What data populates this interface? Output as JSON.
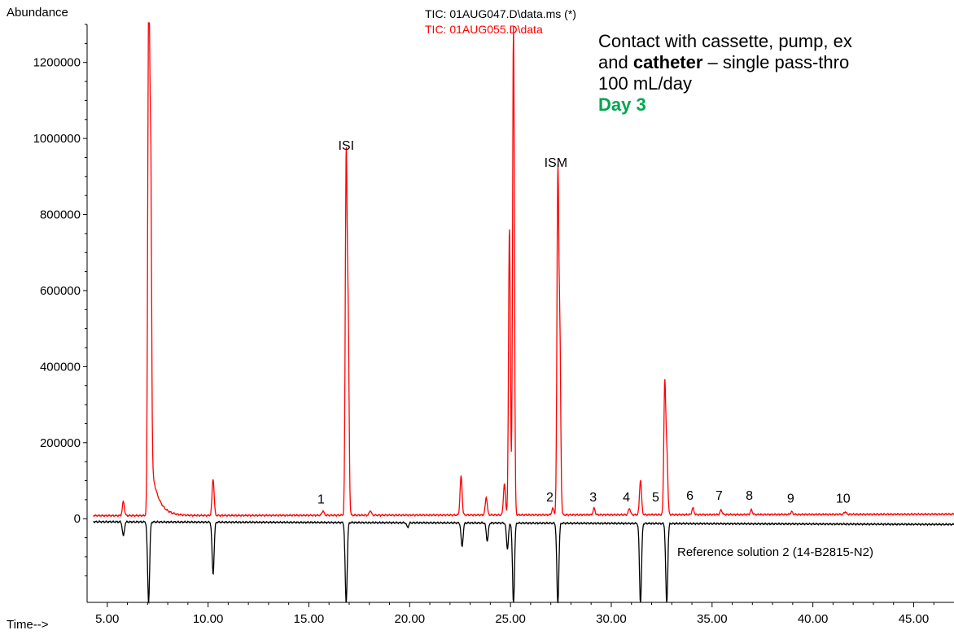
{
  "chart_data": {
    "type": "line",
    "ylabel": "Abundance",
    "xlabel": "Time-->",
    "xlim": [
      4.0,
      47.0
    ],
    "ylim": [
      -220000,
      1300000
    ],
    "x_ticks": [
      "5.00",
      "10.00",
      "15.00",
      "20.00",
      "25.00",
      "30.00",
      "35.00",
      "40.00",
      "45.00"
    ],
    "y_ticks": [
      "0",
      "200000",
      "400000",
      "600000",
      "800000",
      "1000000",
      "1200000"
    ],
    "series": [
      {
        "name": "TIC: 01AUG047.D\\data.ms (*)",
        "color": "#000000",
        "baseline": -8000,
        "drift_end": -15000,
        "peaks": [
          {
            "x": 5.8,
            "y": -45000
          },
          {
            "x": 7.05,
            "y": -220000
          },
          {
            "x": 10.25,
            "y": -145000
          },
          {
            "x": 16.85,
            "y": -220000
          },
          {
            "x": 19.9,
            "y": -20000
          },
          {
            "x": 22.6,
            "y": -70000
          },
          {
            "x": 23.85,
            "y": -55000
          },
          {
            "x": 24.85,
            "y": -75000
          },
          {
            "x": 25.15,
            "y": -220000
          },
          {
            "x": 27.35,
            "y": -220000
          },
          {
            "x": 31.45,
            "y": -220000
          },
          {
            "x": 32.75,
            "y": -220000
          }
        ]
      },
      {
        "name": "TIC: 01AUG055.D\\data.ms",
        "color": "#ff0000",
        "baseline": 8000,
        "drift_end": 12000,
        "peaks": [
          {
            "x": 5.8,
            "y": 45000
          },
          {
            "x": 7.05,
            "y": 1320000
          },
          {
            "x": 7.15,
            "y": 840000
          },
          {
            "x": 10.25,
            "y": 105000
          },
          {
            "x": 15.7,
            "y": 20000
          },
          {
            "x": 16.85,
            "y": 935000
          },
          {
            "x": 16.95,
            "y": 500000
          },
          {
            "x": 18.05,
            "y": 20000
          },
          {
            "x": 22.55,
            "y": 110000
          },
          {
            "x": 23.8,
            "y": 55000
          },
          {
            "x": 24.7,
            "y": 90000
          },
          {
            "x": 24.95,
            "y": 765000
          },
          {
            "x": 25.15,
            "y": 1295000
          },
          {
            "x": 27.1,
            "y": 25000
          },
          {
            "x": 27.35,
            "y": 890000
          },
          {
            "x": 27.45,
            "y": 455000
          },
          {
            "x": 29.15,
            "y": 25000
          },
          {
            "x": 30.9,
            "y": 25000
          },
          {
            "x": 31.45,
            "y": 100000
          },
          {
            "x": 32.65,
            "y": 340000
          },
          {
            "x": 32.75,
            "y": 175000
          },
          {
            "x": 34.05,
            "y": 25000
          },
          {
            "x": 35.45,
            "y": 20000
          },
          {
            "x": 36.95,
            "y": 20000
          },
          {
            "x": 38.95,
            "y": 15000
          },
          {
            "x": 41.6,
            "y": 15000
          }
        ]
      }
    ],
    "peak_labels": [
      {
        "text": "1",
        "x": 15.6,
        "y": 40000
      },
      {
        "text": "ISI",
        "x": 16.85,
        "y": 970000
      },
      {
        "text": "ISM",
        "x": 27.25,
        "y": 925000
      },
      {
        "text": "2",
        "x": 26.95,
        "y": 45000
      },
      {
        "text": "3",
        "x": 29.1,
        "y": 45000
      },
      {
        "text": "4",
        "x": 30.75,
        "y": 45000
      },
      {
        "text": "5",
        "x": 32.2,
        "y": 45000
      },
      {
        "text": "6",
        "x": 33.9,
        "y": 50000
      },
      {
        "text": "7",
        "x": 35.35,
        "y": 50000
      },
      {
        "text": "8",
        "x": 36.85,
        "y": 50000
      },
      {
        "text": "9",
        "x": 38.9,
        "y": 42000
      },
      {
        "text": "10",
        "x": 41.5,
        "y": 42000
      }
    ]
  },
  "legend": {
    "line1": "TIC: 01AUG047.D\\data.ms (*)",
    "line2": "TIC: 01AUG055.D\\data",
    "line1_color": "#000000",
    "line2_color": "#ff0000"
  },
  "annotation": {
    "line1": "Contact with cassette, pump, ex",
    "line2_bold": "catheter",
    "line2_pre": "and ",
    "line2_post": " – single pass-thro",
    "line3": "100 mL/day",
    "line4": "Day 3",
    "day_color": "#00a651"
  },
  "reference_label": "Reference solution 2 (14-B2815-N2)"
}
